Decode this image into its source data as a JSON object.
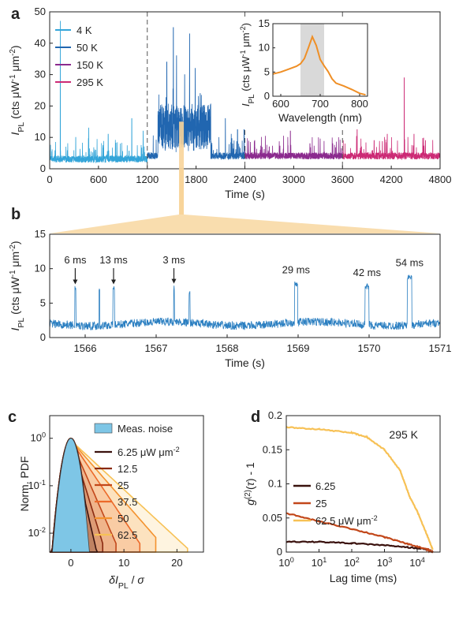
{
  "chart_data": [
    {
      "panel": "a",
      "type": "line",
      "xlabel": "Time (s)",
      "ylabel": "I_PL (cts μW⁻¹ μm⁻²)",
      "xlim": [
        0,
        4800
      ],
      "ylim": [
        0,
        50
      ],
      "xticks": [
        "0",
        "600",
        "1200",
        "1800",
        "2400",
        "3000",
        "3600",
        "4200",
        "4800"
      ],
      "yticks": [
        "0",
        "10",
        "20",
        "30",
        "40",
        "50"
      ],
      "dividers_at": [
        1200,
        2400,
        3600
      ],
      "series": [
        {
          "name": "4 K",
          "color": "#33a5d9",
          "range": [
            0,
            1200
          ],
          "baseline": 2,
          "spikes": [
            [
              130,
              47
            ],
            [
              320,
              10
            ],
            [
              480,
              13
            ],
            [
              720,
              11
            ],
            [
              1010,
              16
            ],
            [
              1150,
              12
            ]
          ]
        },
        {
          "name": "50 K",
          "color": "#2166b0",
          "range": [
            1200,
            2400
          ],
          "baseline": 3,
          "spikes": [
            [
              1350,
              18
            ],
            [
              1440,
              34
            ],
            [
              1520,
              45
            ],
            [
              1560,
              36
            ],
            [
              1660,
              30
            ],
            [
              1720,
              43
            ],
            [
              1790,
              32
            ],
            [
              1850,
              24
            ],
            [
              2160,
              16
            ],
            [
              2310,
              27
            ],
            [
              2390,
              34
            ]
          ]
        },
        {
          "name": "150 K",
          "color": "#8b2a8e",
          "range": [
            2400,
            3600
          ],
          "baseline": 3,
          "spikes": [
            [
              2520,
              9
            ],
            [
              2700,
              7
            ],
            [
              2960,
              12
            ],
            [
              3200,
              8
            ],
            [
              3480,
              8
            ]
          ]
        },
        {
          "name": "295 K",
          "color": "#cc2a75",
          "range": [
            3600,
            4800
          ],
          "baseline": 3,
          "spikes": [
            [
              3780,
              14
            ],
            [
              3990,
              9
            ],
            [
              4150,
              11
            ],
            [
              4360,
              29
            ],
            [
              4480,
              11
            ],
            [
              4620,
              9
            ]
          ]
        }
      ],
      "inset": {
        "xlabel": "Wavelength (nm)",
        "ylabel": "I_PL (cts μW⁻¹ μm⁻²)",
        "xlim": [
          580,
          820
        ],
        "ylim": [
          0,
          15
        ],
        "xticks": [
          "600",
          "700",
          "800"
        ],
        "yticks": [
          "0",
          "5",
          "10",
          "15"
        ],
        "shaded_band": [
          650,
          710
        ],
        "color": "#ef8f26",
        "x": [
          580,
          600,
          620,
          640,
          650,
          660,
          670,
          680,
          690,
          700,
          710,
          720,
          730,
          740,
          760,
          780,
          800,
          815
        ],
        "y": [
          4.6,
          5.0,
          5.6,
          6.2,
          6.7,
          7.8,
          10.0,
          12.3,
          10.5,
          7.6,
          6.3,
          5.1,
          3.6,
          2.7,
          2.1,
          1.4,
          0.6,
          0.3
        ]
      }
    },
    {
      "panel": "b",
      "type": "line",
      "xlabel": "Time (s)",
      "ylabel": "I_PL (cts μW⁻¹ μm⁻²)",
      "xlim": [
        1565.5,
        1571
      ],
      "ylim": [
        0,
        15
      ],
      "xticks": [
        "1566",
        "1567",
        "1568",
        "1569",
        "1570",
        "1571"
      ],
      "yticks": [
        "0",
        "5",
        "10",
        "15"
      ],
      "color": "#2b7fc1",
      "baseline": 2,
      "bursts": [
        {
          "t": 1565.86,
          "h": 7.5,
          "w": 0.012
        },
        {
          "t": 1566.2,
          "h": 7.4,
          "w": 0.01
        },
        {
          "t": 1566.4,
          "h": 7.5,
          "w": 0.02
        },
        {
          "t": 1567.25,
          "h": 7.6,
          "w": 0.008
        },
        {
          "t": 1567.47,
          "h": 6.8,
          "w": 0.01
        },
        {
          "t": 1568.97,
          "h": 8.2,
          "w": 0.04
        },
        {
          "t": 1569.97,
          "h": 7.8,
          "w": 0.05
        },
        {
          "t": 1570.57,
          "h": 9.2,
          "w": 0.06
        }
      ],
      "annotations": [
        {
          "label": "6 ms",
          "t": 1565.86,
          "arrow": true
        },
        {
          "label": "13 ms",
          "t": 1566.4,
          "arrow": true
        },
        {
          "label": "3 ms",
          "t": 1567.25,
          "arrow": true
        },
        {
          "label": "29 ms",
          "t": 1568.97,
          "arrow": false
        },
        {
          "label": "42 ms",
          "t": 1569.97,
          "arrow": false
        },
        {
          "label": "54 ms",
          "t": 1570.57,
          "arrow": false
        }
      ]
    },
    {
      "panel": "c",
      "type": "area",
      "xlabel": "δI_PL / σ",
      "ylabel": "Norm. PDF",
      "yscale": "log",
      "xlim": [
        -4,
        25
      ],
      "ylim": [
        0.004,
        3
      ],
      "xticks": [
        "0",
        "10",
        "20"
      ],
      "yticks": [
        "10⁻²",
        "10⁻¹",
        "10⁰"
      ],
      "legend_title_unit": "μW μm⁻²",
      "noise": {
        "name": "Meas. noise",
        "color": "#7ec6e6"
      },
      "series": [
        {
          "name": "6.25",
          "color": "#3a120e",
          "xmax": 5.2
        },
        {
          "name": "12.5",
          "color": "#8a2a10",
          "xmax": 6.2
        },
        {
          "name": "25",
          "color": "#c2471a",
          "xmax": 8.5
        },
        {
          "name": "37.5",
          "color": "#ec6a2a",
          "xmax": 13
        },
        {
          "name": "50",
          "color": "#f3922e",
          "xmax": 16
        },
        {
          "name": "62.5",
          "color": "#f7c155",
          "xmax": 22
        }
      ]
    },
    {
      "panel": "d",
      "type": "line",
      "xlabel": "Lag time (ms)",
      "ylabel": "g⁽²⁾(τ) - 1",
      "xscale": "log",
      "xlim": [
        1,
        50000
      ],
      "ylim": [
        0,
        0.2
      ],
      "xticks": [
        "10⁰",
        "10¹",
        "10²",
        "10³",
        "10⁴"
      ],
      "yticks": [
        "0",
        "0.05",
        "0.1",
        "0.15",
        "0.2"
      ],
      "annotation": "295 K",
      "legend_unit": "μW μm⁻²",
      "series": [
        {
          "name": "6.25",
          "color": "#3a120e",
          "x": [
            1,
            10,
            100,
            1000,
            5000,
            20000,
            30000
          ],
          "y": [
            0.015,
            0.015,
            0.013,
            0.01,
            0.007,
            0.004,
            0.0
          ]
        },
        {
          "name": "25",
          "color": "#c2471a",
          "x": [
            1,
            10,
            100,
            1000,
            5000,
            20000,
            30000
          ],
          "y": [
            0.057,
            0.045,
            0.034,
            0.022,
            0.012,
            0.004,
            0.0
          ]
        },
        {
          "name": "62.5",
          "color": "#f7c155",
          "x": [
            1,
            10,
            100,
            300,
            1000,
            3000,
            6000,
            10000,
            20000,
            30000
          ],
          "y": [
            0.183,
            0.18,
            0.175,
            0.168,
            0.15,
            0.12,
            0.08,
            0.06,
            0.025,
            0.003
          ]
        }
      ]
    }
  ],
  "labels": {
    "a": "a",
    "b": "b",
    "c": "c",
    "d": "d"
  },
  "colors": {
    "zoom_band": "#f8d49a"
  }
}
